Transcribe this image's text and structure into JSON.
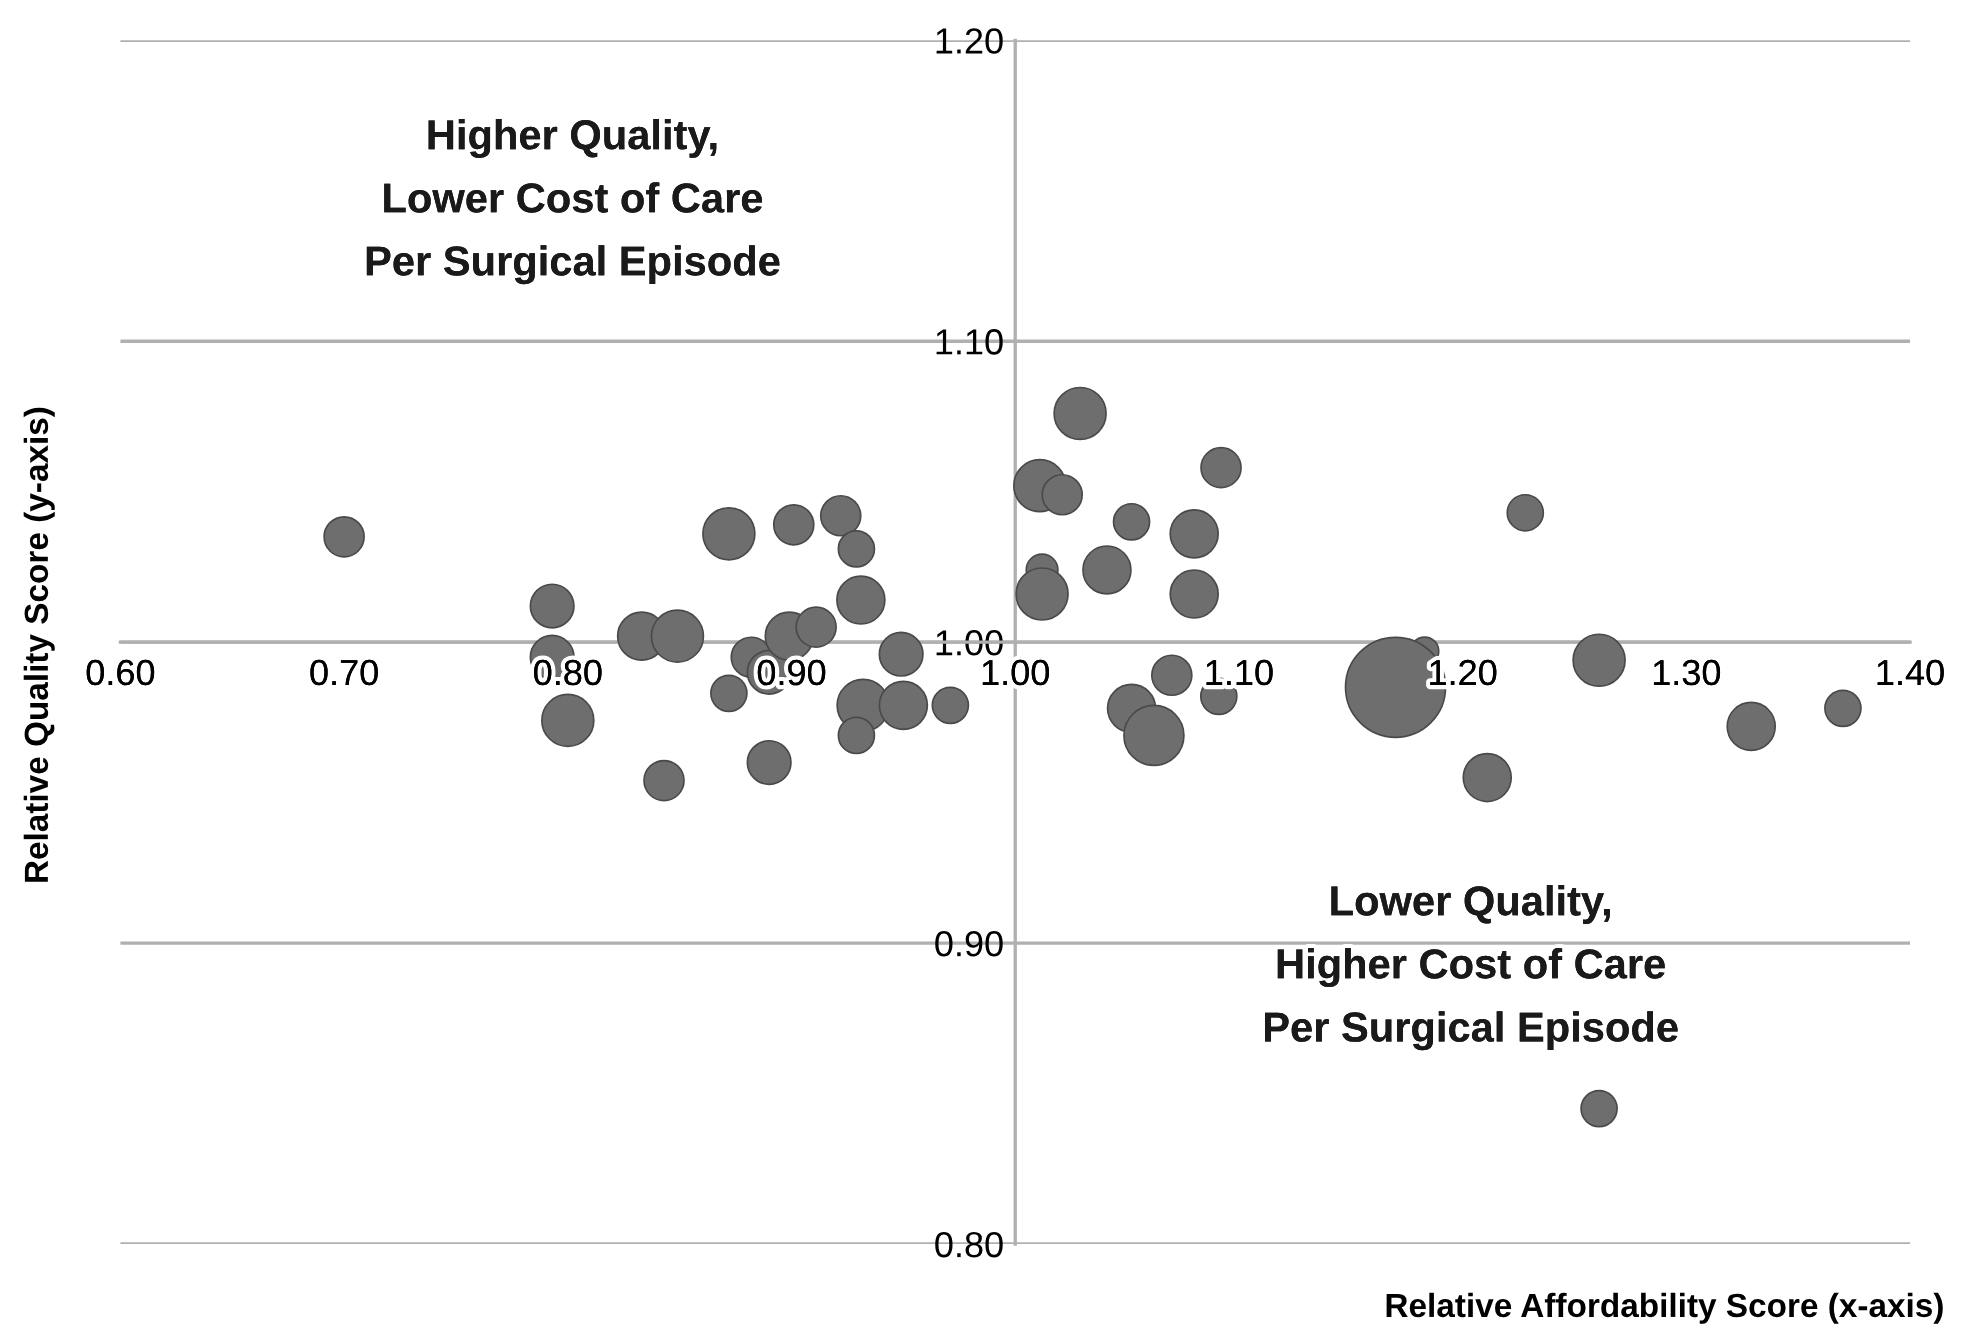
{
  "chart_data": {
    "type": "bubble",
    "xlabel": "Relative Affordability Score (x-axis)",
    "ylabel": "Relative Quality Score (y-axis)",
    "annotations": [
      "Higher Quality,\nLower Cost of Care\nPer Surgical Episode",
      "Lower Quality,\nHigher Cost of Care\nPer Surgical Episode"
    ],
    "xlim": [
      0.6,
      1.4
    ],
    "ylim": [
      0.8,
      1.2
    ],
    "xticks": [
      {
        "value": 0.6,
        "label": "0.60"
      },
      {
        "value": 0.7,
        "label": "0.70"
      },
      {
        "value": 0.8,
        "label": "0.80"
      },
      {
        "value": 0.9,
        "label": "0.90"
      },
      {
        "value": 1.0,
        "label": "1.00"
      },
      {
        "value": 1.1,
        "label": "1.10"
      },
      {
        "value": 1.2,
        "label": "1.20"
      },
      {
        "value": 1.3,
        "label": "1.30"
      },
      {
        "value": 1.4,
        "label": "1.40"
      }
    ],
    "yticks": [
      {
        "value": 0.8,
        "label": "0.80"
      },
      {
        "value": 0.9,
        "label": "0.90"
      },
      {
        "value": 1.0,
        "label": "1.00"
      },
      {
        "value": 1.1,
        "label": "1.10"
      },
      {
        "value": 1.2,
        "label": "1.20"
      }
    ],
    "grid": "y",
    "series": [
      {
        "color": "#6e6e6e",
        "x": [
          0.7,
          0.793,
          0.793,
          0.8,
          0.833,
          0.849,
          0.872,
          0.843,
          0.872,
          0.901,
          0.922,
          0.929,
          0.931,
          0.882,
          0.89,
          0.899,
          0.911,
          0.89,
          0.932,
          0.929,
          0.95,
          0.971,
          0.949,
          1.029,
          1.011,
          1.021,
          1.052,
          1.092,
          1.08,
          1.012,
          1.012,
          1.041,
          1.08,
          1.228,
          1.183,
          1.17,
          1.261,
          1.07,
          1.091,
          1.052,
          1.062,
          1.329,
          1.37,
          1.211,
          1.261
        ],
        "values": [
          1.035,
          1.012,
          0.995,
          0.974,
          1.002,
          1.002,
          0.983,
          0.954,
          1.036,
          1.039,
          1.042,
          1.031,
          1.014,
          0.995,
          0.99,
          1.002,
          1.005,
          0.96,
          0.979,
          0.969,
          0.979,
          0.979,
          0.996,
          1.076,
          1.052,
          1.049,
          1.04,
          1.058,
          1.036,
          1.024,
          1.016,
          1.024,
          1.016,
          1.043,
          0.997,
          0.985,
          0.994,
          0.989,
          0.982,
          0.978,
          0.969,
          0.972,
          0.978,
          0.955,
          0.845
        ],
        "sizes": [
          0.16,
          0.19,
          0.19,
          0.27,
          0.23,
          0.27,
          0.13,
          0.16,
          0.27,
          0.16,
          0.16,
          0.13,
          0.23,
          0.16,
          0.19,
          0.23,
          0.16,
          0.19,
          0.27,
          0.13,
          0.23,
          0.13,
          0.19,
          0.27,
          0.27,
          0.16,
          0.13,
          0.16,
          0.23,
          0.1,
          0.27,
          0.23,
          0.23,
          0.13,
          0.08,
          1,
          0.27,
          0.16,
          0.13,
          0.23,
          0.36,
          0.23,
          0.13,
          0.23,
          0.13
        ]
      }
    ]
  }
}
